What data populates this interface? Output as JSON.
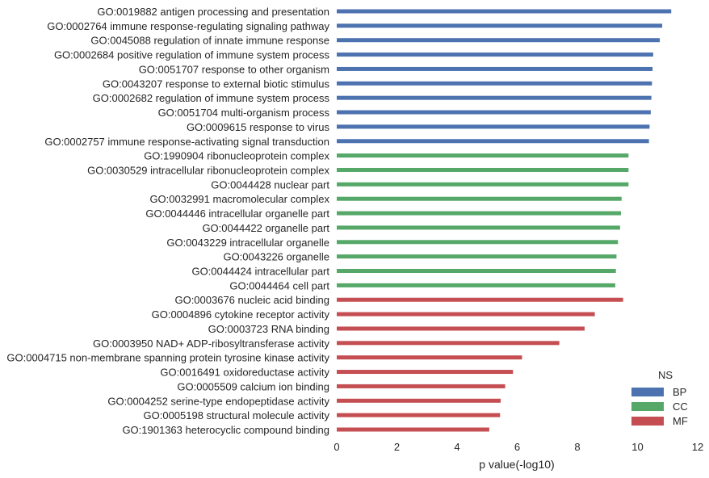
{
  "chart_data": {
    "type": "bar",
    "orientation": "horizontal",
    "xlabel": "p value(-log10)",
    "ylabel": "",
    "xlim": [
      0,
      12
    ],
    "xticks": [
      "0",
      "2",
      "4",
      "6",
      "8",
      "10",
      "12"
    ],
    "grid": false,
    "legend": {
      "title": "NS",
      "placement": "bottom-right",
      "entries": [
        {
          "name": "BP",
          "color": "#4c72b0"
        },
        {
          "name": "CC",
          "color": "#55a868"
        },
        {
          "name": "MF",
          "color": "#c44e52"
        }
      ]
    },
    "categories": [
      "GO:0019882 antigen processing and presentation",
      "GO:0002764 immune response-regulating signaling pathway",
      "GO:0045088 regulation of innate immune response",
      "GO:0002684 positive regulation of immune system process",
      "GO:0051707 response to other organism",
      "GO:0043207 response to external biotic stimulus",
      "GO:0002682 regulation of immune system process",
      "GO:0051704 multi-organism process",
      "GO:0009615 response to virus",
      "GO:0002757 immune response-activating signal transduction",
      "GO:1990904 ribonucleoprotein complex",
      "GO:0030529 intracellular ribonucleoprotein complex",
      "GO:0044428 nuclear part",
      "GO:0032991 macromolecular complex",
      "GO:0044446 intracellular organelle part",
      "GO:0044422 organelle part",
      "GO:0043229 intracellular organelle",
      "GO:0043226 organelle",
      "GO:0044424 intracellular part",
      "GO:0044464 cell part",
      "GO:0003676 nucleic acid binding",
      "GO:0004896 cytokine receptor activity",
      "GO:0003723 RNA binding",
      "GO:0003950 NAD+ ADP-ribosyltransferase activity",
      "GO:0004715 non-membrane spanning protein tyrosine kinase activity",
      "GO:0016491 oxidoreductase activity",
      "GO:0005509 calcium ion binding",
      "GO:0004252 serine-type endopeptidase activity",
      "GO:0005198 structural molecule activity",
      "GO:1901363 heterocyclic compound binding"
    ],
    "values": [
      11.12,
      10.82,
      10.74,
      10.52,
      10.5,
      10.48,
      10.46,
      10.44,
      10.4,
      10.38,
      9.7,
      9.7,
      9.7,
      9.47,
      9.45,
      9.42,
      9.35,
      9.3,
      9.28,
      9.26,
      9.52,
      8.58,
      8.24,
      7.4,
      6.16,
      5.86,
      5.6,
      5.45,
      5.43,
      5.07
    ],
    "groups": [
      "BP",
      "BP",
      "BP",
      "BP",
      "BP",
      "BP",
      "BP",
      "BP",
      "BP",
      "BP",
      "CC",
      "CC",
      "CC",
      "CC",
      "CC",
      "CC",
      "CC",
      "CC",
      "CC",
      "CC",
      "MF",
      "MF",
      "MF",
      "MF",
      "MF",
      "MF",
      "MF",
      "MF",
      "MF",
      "MF"
    ]
  }
}
